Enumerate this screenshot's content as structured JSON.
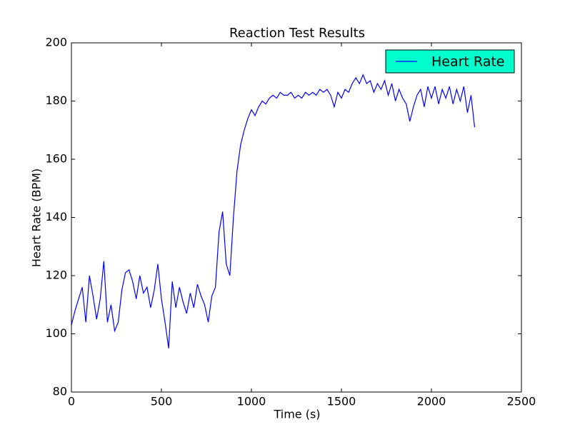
{
  "chart_data": {
    "type": "line",
    "title": "Reaction Test Results",
    "xlabel": "Time (s)",
    "ylabel": "Heart Rate (BPM)",
    "x": [
      0,
      20,
      40,
      60,
      80,
      100,
      120,
      140,
      160,
      180,
      200,
      220,
      240,
      260,
      280,
      300,
      320,
      340,
      360,
      380,
      400,
      420,
      440,
      460,
      480,
      500,
      520,
      540,
      560,
      580,
      600,
      620,
      640,
      660,
      680,
      700,
      720,
      740,
      760,
      780,
      800,
      820,
      840,
      860,
      880,
      900,
      920,
      940,
      960,
      980,
      1000,
      1020,
      1040,
      1060,
      1080,
      1100,
      1120,
      1140,
      1160,
      1180,
      1200,
      1220,
      1240,
      1260,
      1280,
      1300,
      1320,
      1340,
      1360,
      1380,
      1400,
      1420,
      1440,
      1460,
      1480,
      1500,
      1520,
      1540,
      1560,
      1580,
      1600,
      1620,
      1640,
      1660,
      1680,
      1700,
      1720,
      1740,
      1760,
      1780,
      1800,
      1820,
      1840,
      1860,
      1880,
      1900,
      1920,
      1940,
      1960,
      1980,
      2000,
      2020,
      2040,
      2060,
      2080,
      2100,
      2120,
      2140,
      2160,
      2180,
      2200,
      2220,
      2240
    ],
    "series": [
      {
        "name": "Heart Rate",
        "color": "#0000ff",
        "values": [
          103,
          108,
          112,
          116,
          104,
          120,
          113,
          105,
          112,
          125,
          104,
          110,
          101,
          104,
          115,
          121,
          122,
          118,
          112,
          120,
          114,
          116,
          109,
          115,
          124,
          112,
          104,
          95,
          118,
          109,
          116,
          111,
          107,
          114,
          109,
          117,
          113,
          110,
          104,
          113,
          116,
          135,
          142,
          124,
          120,
          140,
          156,
          165,
          170,
          174,
          177,
          175,
          178,
          180,
          179,
          181,
          182,
          181,
          183,
          182,
          182,
          183,
          181,
          182,
          181,
          183,
          182,
          183,
          182,
          184,
          183,
          184,
          182,
          178,
          183,
          181,
          184,
          183,
          186,
          188,
          186,
          189,
          186,
          187,
          183,
          186,
          184,
          187,
          182,
          186,
          180,
          184,
          181,
          179,
          173,
          178,
          182,
          184,
          178,
          185,
          181,
          185,
          179,
          184,
          181,
          185,
          179,
          184,
          180,
          185,
          176,
          182,
          171
        ]
      }
    ],
    "xlim": [
      0,
      2500
    ],
    "xticks": [
      0,
      500,
      1000,
      1500,
      2000,
      2500
    ],
    "ylim": [
      80,
      200
    ],
    "yticks": [
      80,
      100,
      120,
      140,
      160,
      180,
      200
    ],
    "legend": {
      "position": "upper right",
      "background": "#00ffcc"
    }
  }
}
